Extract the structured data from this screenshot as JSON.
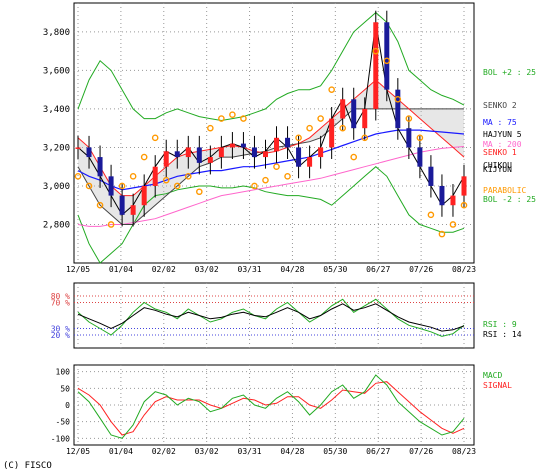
{
  "chart_data": [
    {
      "panel": "price",
      "type": "line",
      "ylim": [
        2600,
        3950
      ],
      "y_ticks": [
        2800,
        3000,
        3200,
        3400,
        3600,
        3800
      ],
      "y_tick_labels": [
        "2,800",
        "3,000",
        "3,200",
        "3,400",
        "3,600",
        "3,800"
      ],
      "x_tick_labels": [
        "12/05",
        "01/04",
        "02/02",
        "03/02",
        "03/31",
        "04/28",
        "05/30",
        "06/27",
        "07/26",
        "08/23"
      ],
      "grid": true,
      "legend": [
        {
          "label": "BOL +2 : 25",
          "color": "#22aa22"
        },
        {
          "label": "SENKO 2",
          "color": "#444444"
        },
        {
          "label": "MA : 75",
          "color": "#1a1aff"
        },
        {
          "label": "HAJYUN 5",
          "color": "#000000"
        },
        {
          "label": "MA : 200",
          "color": "#ff66cc"
        },
        {
          "label": "SENKO 1",
          "color": "#ff2222"
        },
        {
          "label": "CHIKOU",
          "color": "#000000"
        },
        {
          "label": "KIJYUN",
          "color": "#000000"
        },
        {
          "label": "PARABOLIC",
          "color": "#ff9900"
        },
        {
          "label": "BOL -2 : 25",
          "color": "#22aa22"
        }
      ],
      "series_approx": {
        "close": [
          3200,
          3150,
          3050,
          2950,
          2850,
          2900,
          3000,
          3100,
          3180,
          3150,
          3200,
          3120,
          3150,
          3200,
          3220,
          3200,
          3150,
          3180,
          3250,
          3200,
          3100,
          3150,
          3200,
          3350,
          3450,
          3300,
          3400,
          3850,
          3500,
          3300,
          3200,
          3100,
          3000,
          2900,
          2950,
          3050
        ],
        "ma75": [
          3080,
          3050,
          3030,
          3000,
          2980,
          2990,
          3000,
          3010,
          3030,
          3050,
          3060,
          3070,
          3080,
          3080,
          3090,
          3100,
          3100,
          3110,
          3120,
          3130,
          3140,
          3150,
          3170,
          3190,
          3210,
          3230,
          3250,
          3270,
          3280,
          3290,
          3290,
          3290,
          3285,
          3280,
          3275,
          3270
        ],
        "ma200": [
          2800,
          2790,
          2790,
          2800,
          2800,
          2810,
          2820,
          2830,
          2850,
          2870,
          2890,
          2910,
          2930,
          2950,
          2960,
          2970,
          2980,
          2990,
          3000,
          3010,
          3020,
          3030,
          3040,
          3055,
          3070,
          3085,
          3100,
          3115,
          3130,
          3145,
          3160,
          3175,
          3185,
          3195,
          3200,
          3205
        ],
        "bol_upper": [
          3400,
          3550,
          3650,
          3600,
          3500,
          3400,
          3350,
          3350,
          3380,
          3400,
          3380,
          3360,
          3350,
          3340,
          3350,
          3360,
          3380,
          3400,
          3450,
          3480,
          3500,
          3500,
          3520,
          3600,
          3700,
          3800,
          3850,
          3900,
          3850,
          3750,
          3600,
          3550,
          3500,
          3470,
          3450,
          3420
        ],
        "bol_lower": [
          2850,
          2700,
          2600,
          2650,
          2700,
          2800,
          2900,
          2950,
          2960,
          2980,
          2990,
          3000,
          3000,
          2990,
          2990,
          3000,
          2990,
          2970,
          2960,
          2950,
          2950,
          2940,
          2930,
          2900,
          2950,
          3000,
          3050,
          3100,
          3050,
          2950,
          2850,
          2800,
          2780,
          2760,
          2760,
          2780
        ],
        "senko1": [
          3250,
          3200,
          3100,
          3000,
          2950,
          2950,
          3000,
          3050,
          3100,
          3150,
          3170,
          3180,
          3190,
          3200,
          3210,
          3200,
          3180,
          3170,
          3180,
          3200,
          3220,
          3250,
          3300,
          3350,
          3400,
          3450,
          3500,
          3550,
          3500,
          3450,
          3400,
          3350,
          3300,
          3250,
          3200,
          3150
        ],
        "senko2": [
          3100,
          3000,
          2900,
          2850,
          2800,
          2800,
          2850,
          2900,
          2950,
          3000,
          3050,
          3100,
          3120,
          3150,
          3150,
          3160,
          3170,
          3180,
          3200,
          3210,
          3220,
          3230,
          3250,
          3300,
          3350,
          3400,
          3400,
          3400,
          3400,
          3400,
          3400,
          3400,
          3400,
          3400,
          3400,
          3400
        ]
      }
    },
    {
      "panel": "rsi",
      "type": "line",
      "ylim": [
        0,
        100
      ],
      "reference_levels": [
        {
          "value": 80,
          "label": "80 %",
          "color": "#dd4444"
        },
        {
          "value": 70,
          "label": "70 %",
          "color": "#dd4444"
        },
        {
          "value": 30,
          "label": "30 %",
          "color": "#4444dd"
        },
        {
          "value": 20,
          "label": "20 %",
          "color": "#4444dd"
        }
      ],
      "legend": [
        {
          "label": "RSI : 9",
          "color": "#22aa22"
        },
        {
          "label": "RSI : 14",
          "color": "#000000"
        }
      ],
      "series_approx": {
        "rsi9": [
          55,
          40,
          30,
          20,
          35,
          55,
          70,
          60,
          55,
          45,
          60,
          50,
          40,
          45,
          55,
          60,
          50,
          45,
          60,
          70,
          55,
          40,
          50,
          65,
          75,
          55,
          65,
          75,
          60,
          45,
          35,
          30,
          25,
          18,
          22,
          35
        ],
        "rsi14": [
          52,
          45,
          38,
          30,
          38,
          50,
          62,
          58,
          52,
          48,
          55,
          50,
          45,
          47,
          52,
          55,
          50,
          48,
          55,
          62,
          55,
          45,
          50,
          60,
          68,
          58,
          62,
          68,
          58,
          48,
          40,
          36,
          32,
          26,
          28,
          34
        ]
      }
    },
    {
      "panel": "macd",
      "type": "line",
      "ylim": [
        -120,
        120
      ],
      "y_ticks": [
        100,
        50,
        0,
        -50,
        -100
      ],
      "y_tick_labels": [
        "100",
        "50",
        "0",
        "-50",
        "-100"
      ],
      "legend": [
        {
          "label": "MACD",
          "color": "#22aa22"
        },
        {
          "label": "SIGNAL",
          "color": "#ff2222"
        }
      ],
      "series_approx": {
        "macd": [
          40,
          10,
          -40,
          -90,
          -100,
          -60,
          10,
          40,
          30,
          0,
          20,
          10,
          -20,
          -10,
          20,
          30,
          0,
          -10,
          20,
          40,
          10,
          -30,
          0,
          40,
          60,
          20,
          40,
          90,
          60,
          10,
          -20,
          -50,
          -70,
          -90,
          -80,
          -40
        ],
        "signal": [
          50,
          30,
          0,
          -50,
          -90,
          -80,
          -30,
          10,
          25,
          15,
          15,
          15,
          0,
          -10,
          5,
          20,
          15,
          0,
          5,
          25,
          25,
          0,
          -10,
          15,
          45,
          40,
          35,
          65,
          70,
          40,
          10,
          -20,
          -45,
          -70,
          -85,
          -70
        ]
      }
    }
  ],
  "footer": {
    "copyright": "(C) FISCO"
  }
}
